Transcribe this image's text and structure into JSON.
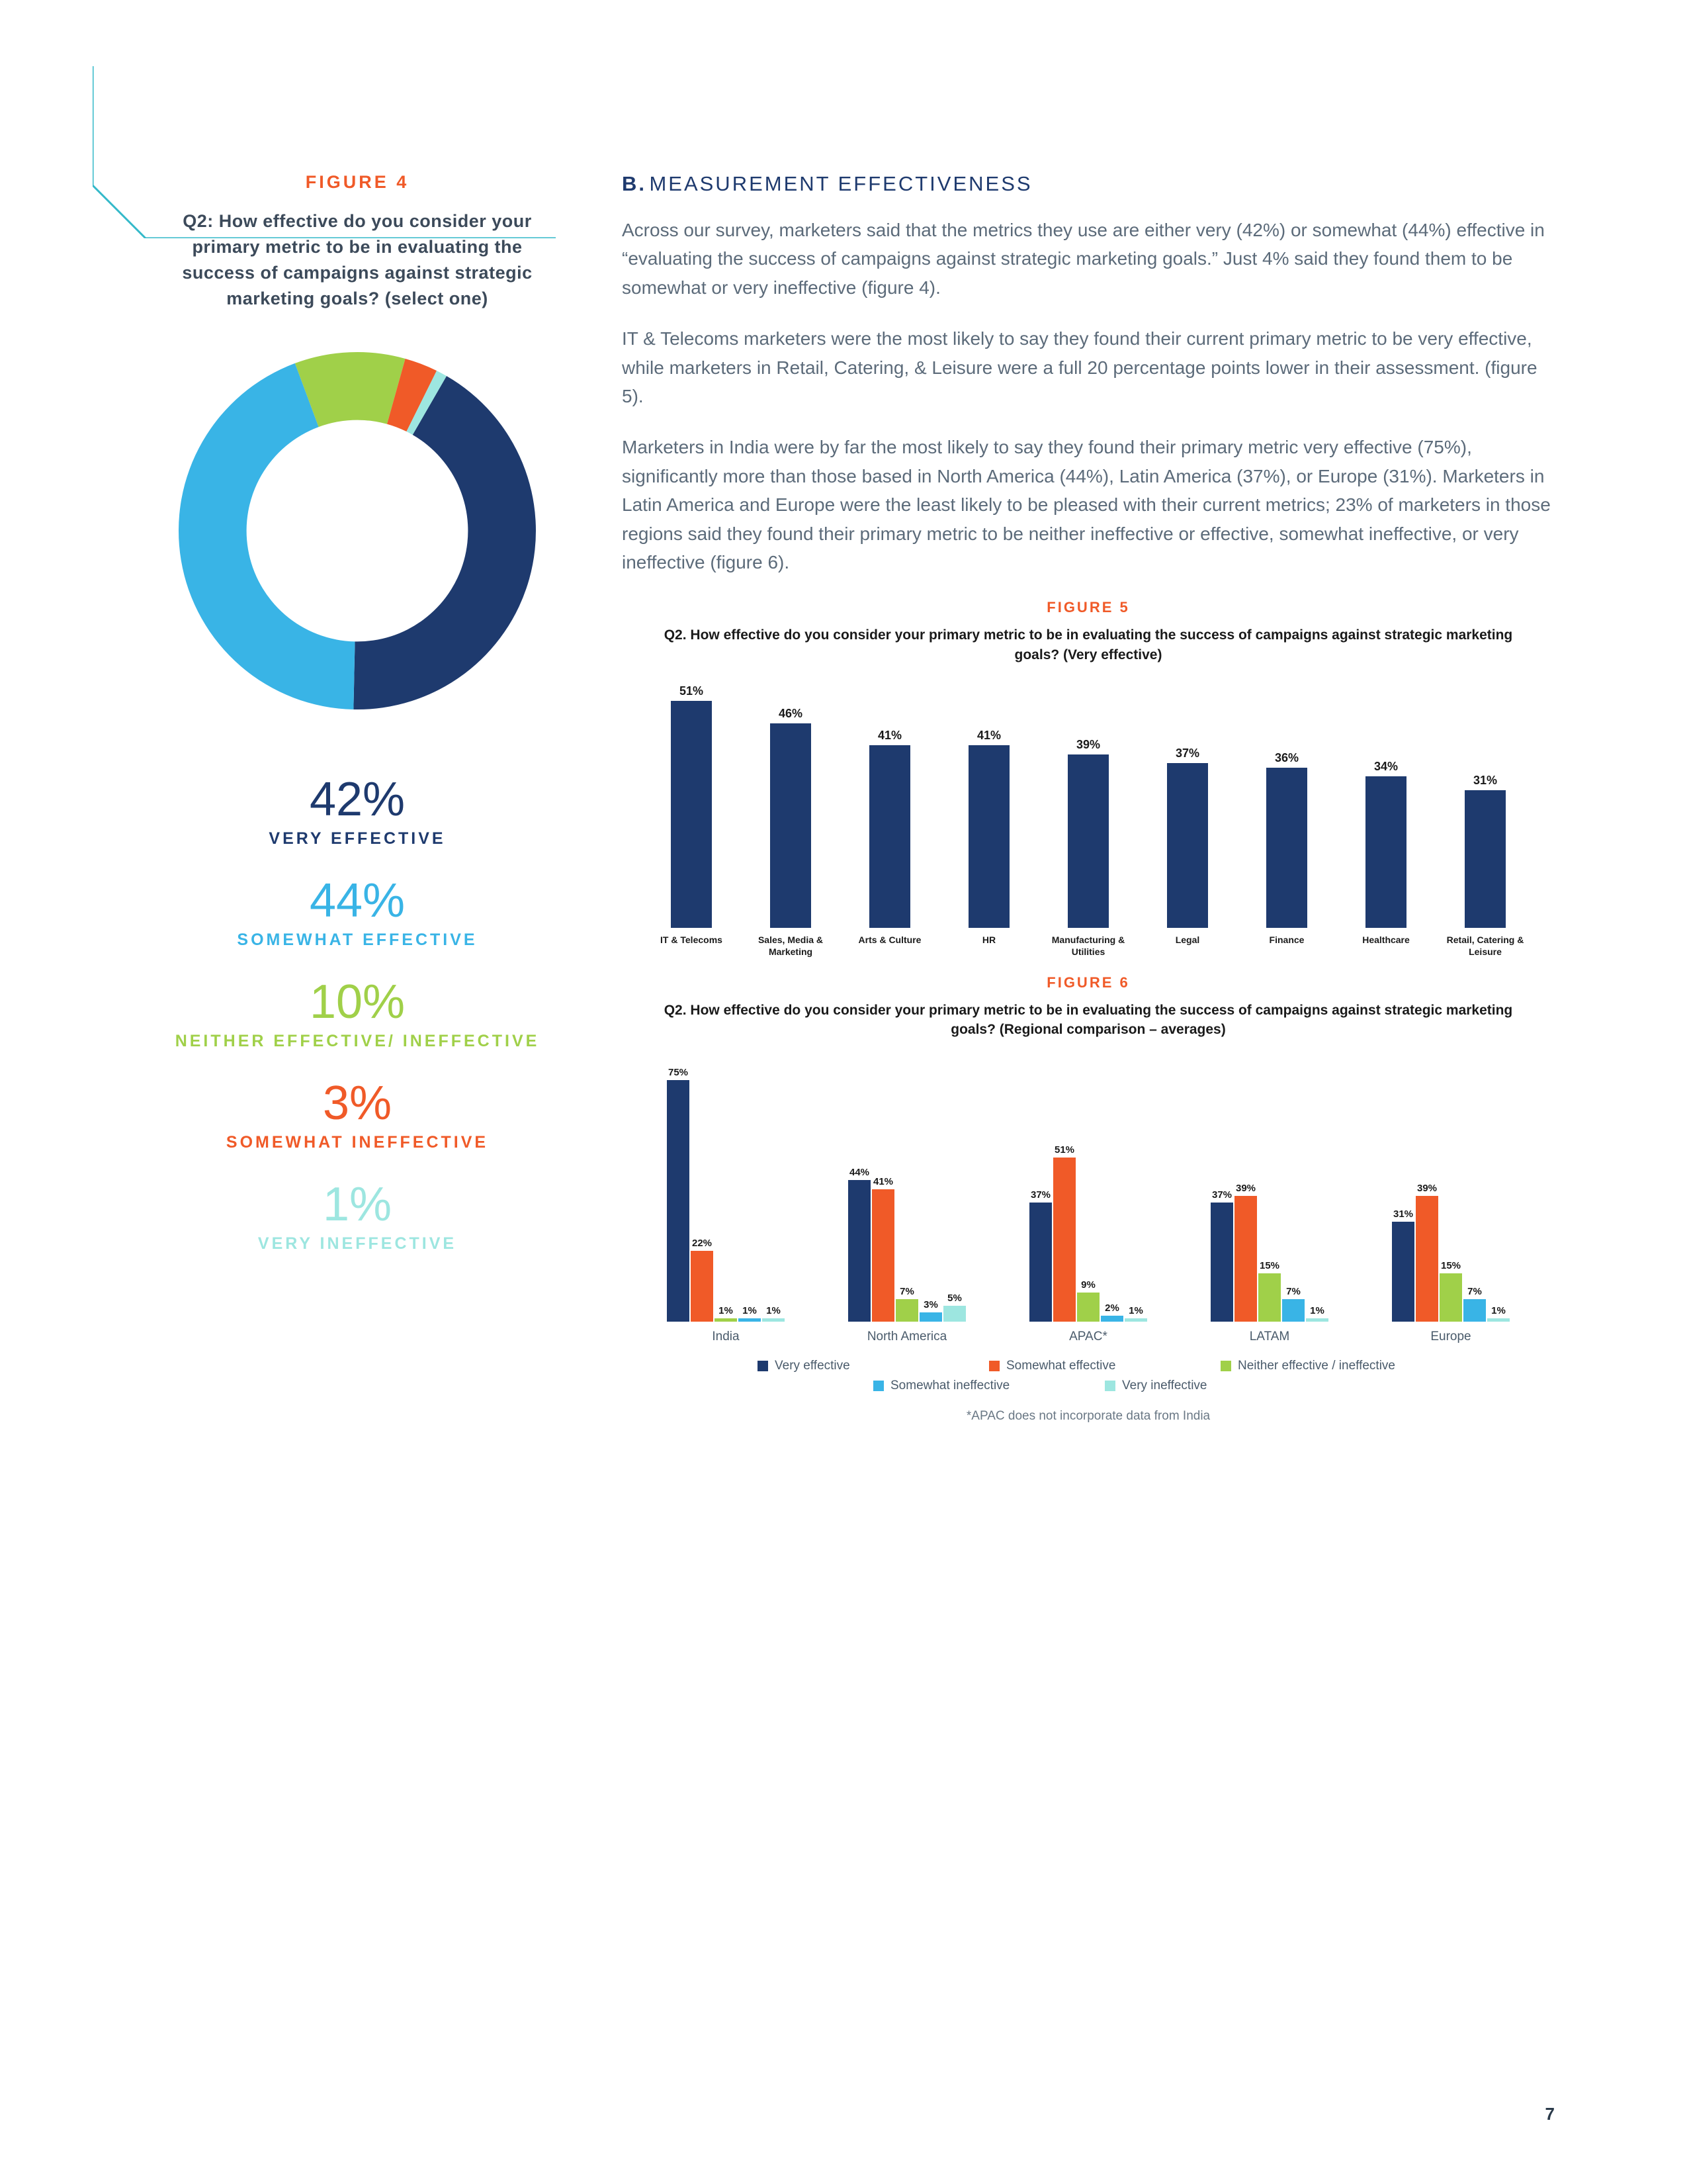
{
  "corner_line_color": "#33b9c9",
  "figure4": {
    "label": "FIGURE 4",
    "question": "Q2: How effective do you consider your primary metric to be in evaluating the success of campaigns against strategic marketing goals? (select one)",
    "donut": {
      "size": 560,
      "inner_ratio": 0.62,
      "slices": [
        {
          "label": "VERY EFFECTIVE",
          "pct": "42%",
          "value": 42,
          "color": "#1e3a6e"
        },
        {
          "label": "SOMEWHAT EFFECTIVE",
          "pct": "44%",
          "value": 44,
          "color": "#39b4e6"
        },
        {
          "label": "NEITHER EFFECTIVE/ INEFFECTIVE",
          "pct": "10%",
          "value": 10,
          "color": "#a0d049"
        },
        {
          "label": "SOMEWHAT INEFFECTIVE",
          "pct": "3%",
          "value": 3,
          "color": "#f05a28"
        },
        {
          "label": "VERY INEFFECTIVE",
          "pct": "1%",
          "value": 1,
          "color": "#9de6e0"
        }
      ],
      "start_angle_deg": 30
    }
  },
  "section": {
    "prefix": "B.",
    "title": "MEASUREMENT EFFECTIVENESS",
    "paragraphs": [
      "Across our survey, marketers said that the metrics they use are either very (42%) or somewhat (44%) effective in “evaluating the success of campaigns against strategic marketing goals.” Just 4% said they found them to be somewhat or very ineffective (figure 4).",
      "IT & Telecoms marketers were the most likely to say they found their current primary metric to be very effective, while marketers in Retail, Catering, & Leisure were a full 20 percentage points lower in their assessment. (figure 5).",
      "Marketers in India were by far the most likely to say they found their primary metric very effective (75%), significantly more than those based in North America (44%), Latin America (37%), or Europe (31%). Marketers in Latin America and Europe were the least likely to be pleased with their current metrics; 23% of marketers in those regions said they found their primary metric to be neither ineffective or effective, somewhat ineffective, or very ineffective (figure 6)."
    ]
  },
  "figure5": {
    "label": "FIGURE 5",
    "title": "Q2. How effective do you consider your primary metric to be in evaluating the success of campaigns against strategic marketing goals?  (Very effective)",
    "bar_color": "#1e3a6e",
    "max_value": 55,
    "bars": [
      {
        "label": "IT & Telecoms",
        "value": 51,
        "display": "51%"
      },
      {
        "label": "Sales, Media & Marketing",
        "value": 46,
        "display": "46%"
      },
      {
        "label": "Arts & Culture",
        "value": 41,
        "display": "41%"
      },
      {
        "label": "HR",
        "value": 41,
        "display": "41%"
      },
      {
        "label": "Manufacturing & Utilities",
        "value": 39,
        "display": "39%"
      },
      {
        "label": "Legal",
        "value": 37,
        "display": "37%"
      },
      {
        "label": "Finance",
        "value": 36,
        "display": "36%"
      },
      {
        "label": "Healthcare",
        "value": 34,
        "display": "34%"
      },
      {
        "label": "Retail, Catering & Leisure",
        "value": 31,
        "display": "31%"
      }
    ]
  },
  "figure6": {
    "label": "FIGURE 6",
    "title": "Q2. How effective do you consider your primary metric to be in evaluating the success of campaigns against strategic marketing goals? (Regional comparison – averages)",
    "max_value": 80,
    "series": [
      {
        "name": "Very effective",
        "color": "#1e3a6e"
      },
      {
        "name": "Somewhat effective",
        "color": "#f05a28"
      },
      {
        "name": "Neither effective / ineffective",
        "color": "#a0d049"
      },
      {
        "name": "Somewhat ineffective",
        "color": "#39b4e6"
      },
      {
        "name": "Very ineffective",
        "color": "#9de6e0"
      }
    ],
    "groups": [
      {
        "label": "India",
        "values": [
          75,
          22,
          1,
          1,
          1
        ],
        "display": [
          "75%",
          "22%",
          "1%",
          "1%",
          "1%"
        ]
      },
      {
        "label": "North America",
        "values": [
          44,
          41,
          7,
          3,
          5
        ],
        "display": [
          "44%",
          "41%",
          "7%",
          "3%",
          "5%"
        ]
      },
      {
        "label": "APAC*",
        "values": [
          37,
          51,
          9,
          2,
          1
        ],
        "display": [
          "37%",
          "51%",
          "9%",
          "2%",
          "1%"
        ]
      },
      {
        "label": "LATAM",
        "values": [
          37,
          39,
          15,
          7,
          1
        ],
        "display": [
          "37%",
          "39%",
          "15%",
          "7%",
          "1%"
        ]
      },
      {
        "label": "Europe",
        "values": [
          31,
          39,
          15,
          7,
          1
        ],
        "display": [
          "31%",
          "39%",
          "15%",
          "7%",
          "1%"
        ]
      }
    ],
    "footnote": "*APAC does not incorporate data from India"
  },
  "page_number": "7"
}
